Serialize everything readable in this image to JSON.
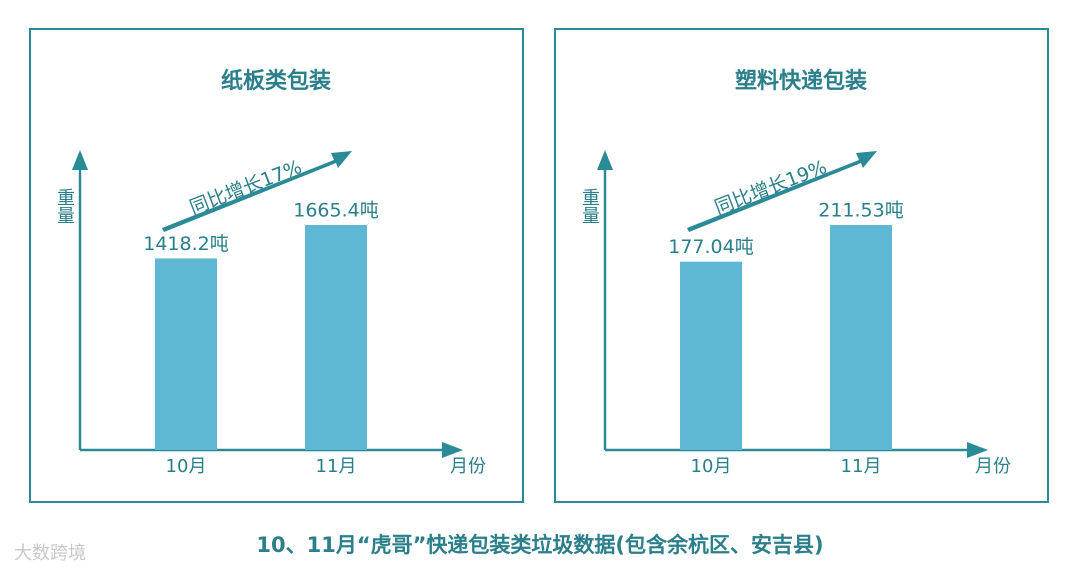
{
  "chart_data": [
    {
      "type": "bar",
      "title": "纸板类包装",
      "y_label": "重量",
      "x_label": "月份",
      "annotation": "同比增长17%",
      "categories": [
        "10月",
        "11月"
      ],
      "values": [
        1418.2,
        1665.4
      ],
      "value_labels": [
        "1418.2吨",
        "1665.4吨"
      ],
      "color": "#5fb8d3"
    },
    {
      "type": "bar",
      "title": "塑料快递包装",
      "y_label": "重量",
      "x_label": "月份",
      "annotation": "同比增长19%",
      "categories": [
        "10月",
        "11月"
      ],
      "values": [
        177.04,
        211.53
      ],
      "value_labels": [
        "177.04吨",
        "211.53吨"
      ],
      "color": "#5fb8d3"
    }
  ],
  "caption": "10、11月“虎哥”快递包装类垃圾数据(包含余杭区、安吉县)",
  "watermark": "大数跨境"
}
